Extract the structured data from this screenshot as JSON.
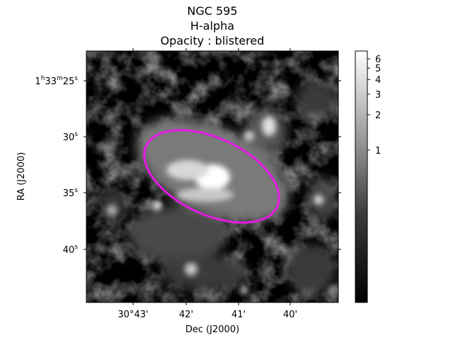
{
  "figure": {
    "title_lines": [
      "NGC 595",
      "H-alpha",
      "Opacity : blistered"
    ],
    "xlabel": "Dec (J2000)",
    "ylabel": "RA (J2000)",
    "x_ticks": [
      "30°43'",
      "42'",
      "41'",
      "40'"
    ],
    "y_ticks": [
      {
        "main": "1",
        "h": "h",
        "m_val": "33",
        "m": "m",
        "s_val": "25",
        "s": "s"
      },
      {
        "s_val": "30",
        "s": "s"
      },
      {
        "s_val": "35",
        "s": "s"
      },
      {
        "s_val": "40",
        "s": "s"
      }
    ],
    "colorbar_ticks": [
      "6",
      "5",
      "4",
      "3",
      "2",
      "1"
    ],
    "colorbar_tick_values": [
      6,
      5,
      4,
      3,
      2,
      1
    ],
    "colorbar_range": [
      0.05,
      7
    ],
    "ellipse_color": "#e619e6",
    "colormap": "gray"
  }
}
